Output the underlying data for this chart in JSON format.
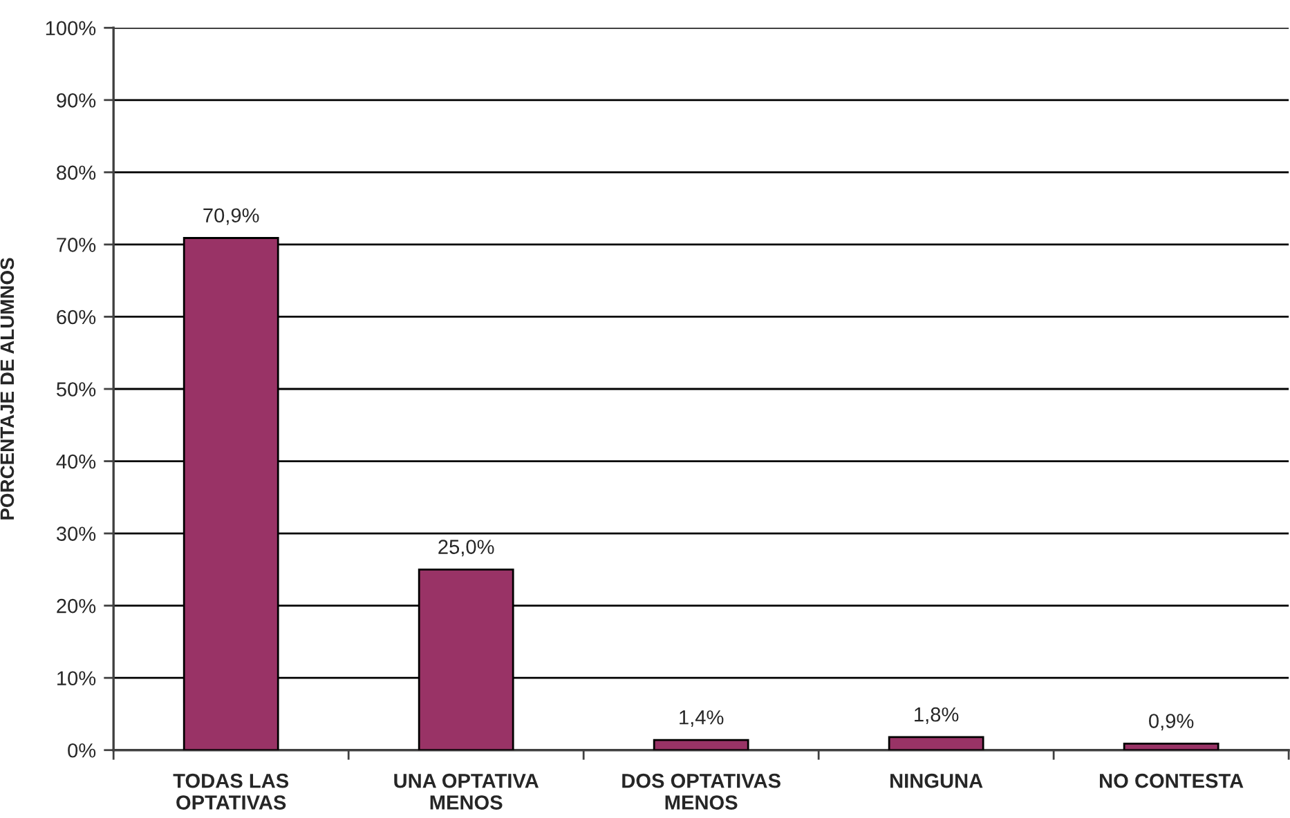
{
  "chart_data": {
    "type": "bar",
    "ylabel": "PORCENTAJE DE ALUMNOS",
    "categories": [
      "TODAS LAS\nOPTATIVAS",
      "UNA OPTATIVA\nMENOS",
      "DOS OPTATIVAS\nMENOS",
      "NINGUNA",
      "NO CONTESTA"
    ],
    "values": [
      70.9,
      25.0,
      1.4,
      1.8,
      0.9
    ],
    "value_labels": [
      "70,9%",
      "25,0%",
      "1,4%",
      "1,8%",
      "0,9%"
    ],
    "color": "#993366",
    "ylim": [
      0,
      100
    ],
    "yticks": [
      {
        "value": 0,
        "label": "0%"
      },
      {
        "value": 10,
        "label": "10%"
      },
      {
        "value": 20,
        "label": "20%"
      },
      {
        "value": 30,
        "label": "30%"
      },
      {
        "value": 40,
        "label": "40%"
      },
      {
        "value": 50,
        "label": "50%"
      },
      {
        "value": 60,
        "label": "60%"
      },
      {
        "value": 70,
        "label": "70%"
      },
      {
        "value": 80,
        "label": "80%"
      },
      {
        "value": 90,
        "label": "90%"
      },
      {
        "value": 100,
        "label": "100%"
      }
    ],
    "grid": "y"
  }
}
